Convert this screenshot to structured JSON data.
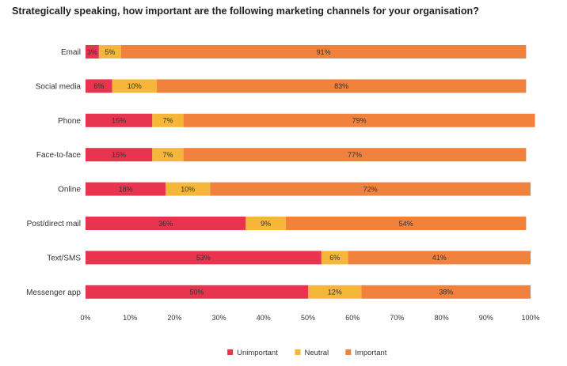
{
  "chart_data": {
    "type": "bar",
    "orientation": "horizontal",
    "stacked": true,
    "title": "Strategically speaking, how important are the following marketing channels for your organisation?",
    "categories": [
      "Email",
      "Social media",
      "Phone",
      "Face-to-face",
      "Online",
      "Post/direct mail",
      "Text/SMS",
      "Messenger app"
    ],
    "series": [
      {
        "name": "Unimportant",
        "color": "#e8344f",
        "values": [
          3,
          6,
          15,
          15,
          18,
          36,
          53,
          50
        ]
      },
      {
        "name": "Neutral",
        "color": "#f6b63a",
        "values": [
          5,
          10,
          7,
          7,
          10,
          9,
          6,
          12
        ]
      },
      {
        "name": "Important",
        "color": "#f0823d",
        "values": [
          91,
          83,
          79,
          77,
          72,
          54,
          41,
          38
        ]
      }
    ],
    "xlim": [
      0,
      100
    ],
    "x_ticks": [
      "0%",
      "10%",
      "20%",
      "30%",
      "40%",
      "50%",
      "60%",
      "70%",
      "80%",
      "90%",
      "100%"
    ],
    "value_suffix": "%",
    "legend_position": "bottom-center",
    "grid": false
  }
}
